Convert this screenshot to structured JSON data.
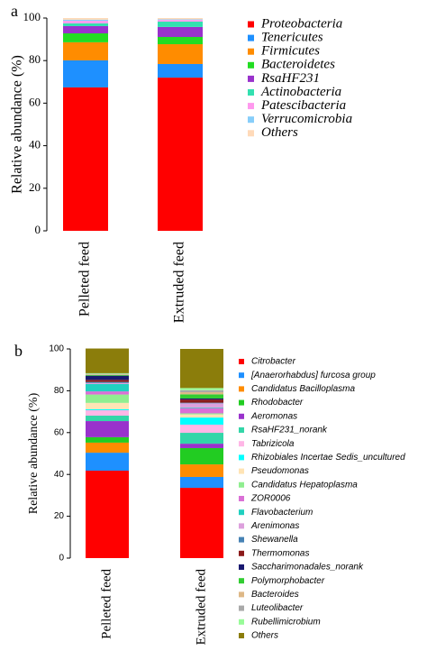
{
  "chart_data": [
    {
      "type": "stacked_bar",
      "label": "a",
      "ylabel": "Relative abundance (%)",
      "categories": [
        "Pelleted feed",
        "Extruded feed"
      ],
      "ylim": [
        0,
        100
      ],
      "yticks": [
        0,
        20,
        40,
        60,
        80,
        100
      ],
      "series": [
        {
          "name": "Proteobacteria",
          "color": "#ff0000",
          "values": [
            67.4,
            72.0
          ]
        },
        {
          "name": "Tenericutes",
          "color": "#1e90ff",
          "values": [
            12.7,
            6.4
          ]
        },
        {
          "name": "Firmicutes",
          "color": "#ff8c00",
          "values": [
            8.5,
            9.3
          ]
        },
        {
          "name": "Bacteroidetes",
          "color": "#22dd22",
          "values": [
            4.2,
            3.4
          ]
        },
        {
          "name": "RsaHF231",
          "color": "#9932cc",
          "values": [
            3.4,
            4.7
          ]
        },
        {
          "name": "Actinobacteria",
          "color": "#33e0b0",
          "values": [
            1.3,
            2.5
          ]
        },
        {
          "name": "Patescibacteria",
          "color": "#ff99ee",
          "values": [
            1.2,
            0.8
          ]
        },
        {
          "name": "Verrucomicrobia",
          "color": "#87cefa",
          "values": [
            0.5,
            0.3
          ]
        },
        {
          "name": "Others",
          "color": "#ffdab9",
          "values": [
            0.8,
            0.6
          ]
        }
      ]
    },
    {
      "type": "stacked_bar",
      "label": "b",
      "ylabel": "Relative abundance (%)",
      "categories": [
        "Pelleted feed",
        "Extruded feed"
      ],
      "ylim": [
        0,
        100
      ],
      "yticks": [
        0,
        20,
        40,
        60,
        80,
        100
      ],
      "series": [
        {
          "name": "Citrobacter",
          "color": "#ff0000",
          "values": [
            41.8,
            33.6
          ]
        },
        {
          "name": "[Anaerorhabdus] furcosa group",
          "color": "#1e90ff",
          "values": [
            8.6,
            5.2
          ]
        },
        {
          "name": "Candidatus Bacilloplasma",
          "color": "#ff8c00",
          "values": [
            4.8,
            6.0
          ]
        },
        {
          "name": "Rhodobacter",
          "color": "#22cc22",
          "values": [
            2.6,
            7.8
          ]
        },
        {
          "name": "Aeromonas",
          "color": "#9932cc",
          "values": [
            7.7,
            2.1
          ]
        },
        {
          "name": "RsaHF231_norank",
          "color": "#33d6a8",
          "values": [
            2.6,
            5.2
          ]
        },
        {
          "name": "Tabrizicola",
          "color": "#ffb6e6",
          "values": [
            2.6,
            3.9
          ]
        },
        {
          "name": "Rhizobiales Incertae Sedis_uncultured",
          "color": "#00ffff",
          "values": [
            0.5,
            3.4
          ]
        },
        {
          "name": "Pseudomonas",
          "color": "#ffe4b5",
          "values": [
            3.0,
            1.5
          ]
        },
        {
          "name": "Candidatus Hepatoplasma",
          "color": "#90ee90",
          "values": [
            4.0,
            0.5
          ]
        },
        {
          "name": "ZOR0006",
          "color": "#da70d6",
          "values": [
            1.5,
            2.5
          ]
        },
        {
          "name": "Flavobacterium",
          "color": "#20d0c0",
          "values": [
            3.5,
            0.3
          ]
        },
        {
          "name": "Arenimonas",
          "color": "#dda0dd",
          "values": [
            0.5,
            2.0
          ]
        },
        {
          "name": "Shewanella",
          "color": "#4682b4",
          "values": [
            0.5,
            0.3
          ]
        },
        {
          "name": "Thermomonas",
          "color": "#8b1a1a",
          "values": [
            1.0,
            1.5
          ]
        },
        {
          "name": "Saccharimonadales_norank",
          "color": "#191970",
          "values": [
            2.0,
            0.5
          ]
        },
        {
          "name": "Polymorphobacter",
          "color": "#32cd32",
          "values": [
            0.3,
            2.0
          ]
        },
        {
          "name": "Bacteroides",
          "color": "#deb887",
          "values": [
            0.3,
            1.0
          ]
        },
        {
          "name": "Luteolibacter",
          "color": "#a9a9a9",
          "values": [
            0.3,
            1.0
          ]
        },
        {
          "name": "Rubellimicrobium",
          "color": "#98fb98",
          "values": [
            0.3,
            1.0
          ]
        },
        {
          "name": "Others",
          "color": "#8b7d0b",
          "values": [
            11.8,
            18.7
          ]
        }
      ]
    }
  ]
}
